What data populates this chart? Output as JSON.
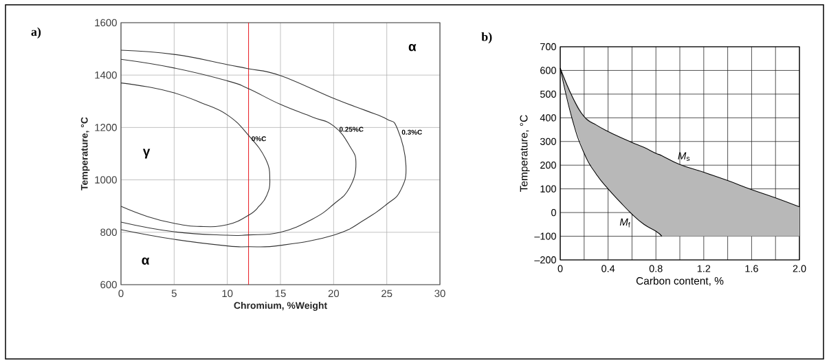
{
  "chart_data": [
    {
      "type": "line",
      "title": "a)",
      "xlabel": "Chromium, %Weight",
      "ylabel": "Temperature, °C",
      "xlim": [
        0,
        30
      ],
      "ylim": [
        600,
        1600
      ],
      "xticks": [
        0,
        5,
        10,
        15,
        20,
        25,
        30
      ],
      "yticks": [
        600,
        800,
        1000,
        1200,
        1400,
        1600
      ],
      "grid": true,
      "marker": "none",
      "ref_lines": [
        {
          "axis": "x",
          "value": 12,
          "color": "#e8141b"
        }
      ],
      "annotations": [
        "γ",
        "α",
        "α"
      ],
      "series": [
        {
          "name": "0%C",
          "color": "#333333",
          "x": [
            0,
            2.5,
            5,
            7.5,
            10,
            12,
            13.6,
            14,
            13.7,
            13,
            12,
            10,
            7.5,
            5,
            2.5,
            0
          ],
          "values": [
            1370,
            1355,
            1332,
            1295,
            1248,
            1170,
            1080,
            1000,
            940,
            900,
            865,
            829,
            822,
            834,
            860,
            899
          ]
        },
        {
          "name": "0.25%C",
          "color": "#333333",
          "x": [
            0,
            5,
            10,
            12,
            15,
            18,
            20,
            21.5,
            22.1,
            21.5,
            20,
            18,
            15,
            12,
            10,
            5,
            0
          ],
          "values": [
            1460,
            1427,
            1378,
            1348,
            1288,
            1240,
            1206,
            1130,
            1062,
            970,
            907,
            850,
            800,
            790,
            789,
            802,
            839
          ]
        },
        {
          "name": "0.3%C",
          "color": "#333333",
          "x": [
            0,
            5,
            10,
            12,
            15,
            20,
            23,
            25,
            26,
            26.8,
            26.3,
            25,
            23,
            20,
            15,
            12,
            10,
            5,
            0
          ],
          "values": [
            1495,
            1479,
            1440,
            1424,
            1398,
            1311,
            1265,
            1232,
            1195,
            1057,
            960,
            907,
            850,
            789,
            750,
            745,
            748,
            773,
            810
          ]
        }
      ]
    },
    {
      "type": "line",
      "title": "b)",
      "xlabel": "Carbon content, %",
      "ylabel": "Temperature, °C",
      "xlim": [
        0,
        2
      ],
      "ylim": [
        -200,
        700
      ],
      "xticks": [
        0,
        {
          "value": 0.2,
          "label": null
        },
        0.4,
        {
          "value": 0.6,
          "label": null
        },
        0.8,
        {
          "value": 1,
          "label": null
        },
        1.2,
        {
          "value": 1.4,
          "label": null
        },
        1.6,
        {
          "value": 1.8,
          "label": null
        },
        {
          "value": 2,
          "label": "2.0"
        }
      ],
      "yticks": [
        {
          "value": -200,
          "label": "–200"
        },
        {
          "value": -100,
          "label": "–100"
        },
        0,
        100,
        200,
        300,
        400,
        500,
        600,
        700
      ],
      "grid": true,
      "marker": "none",
      "series": [
        {
          "name": "*M*$_{s}$",
          "color": "#000000",
          "x": [
            0,
            0.1,
            0.2,
            0.3,
            0.4,
            0.5,
            0.6,
            0.7,
            0.8,
            0.85,
            1,
            1.2,
            1.4,
            1.6,
            1.8,
            2
          ],
          "values": [
            610,
            490,
            405,
            370,
            342,
            318,
            296,
            275,
            250,
            240,
            203,
            170,
            135,
            97,
            62,
            24
          ],
          "upper": [
            610,
            490,
            405,
            370,
            342,
            318,
            296,
            275,
            250,
            240,
            203,
            170,
            135,
            97,
            62,
            24
          ],
          "lower": [
            610,
            395,
            250,
            163,
            100,
            45,
            -7,
            -50,
            -79,
            -100,
            -100,
            -100,
            -100,
            -100,
            -100,
            -100
          ]
        },
        {
          "name": "*M*$_{f}$",
          "color": "#000000",
          "x": [
            0,
            0.1,
            0.2,
            0.3,
            0.4,
            0.5,
            0.6,
            0.7,
            0.8,
            0.85
          ],
          "values": [
            610,
            395,
            250,
            163,
            100,
            45,
            -7,
            -50,
            -79,
            -100
          ]
        }
      ]
    }
  ]
}
